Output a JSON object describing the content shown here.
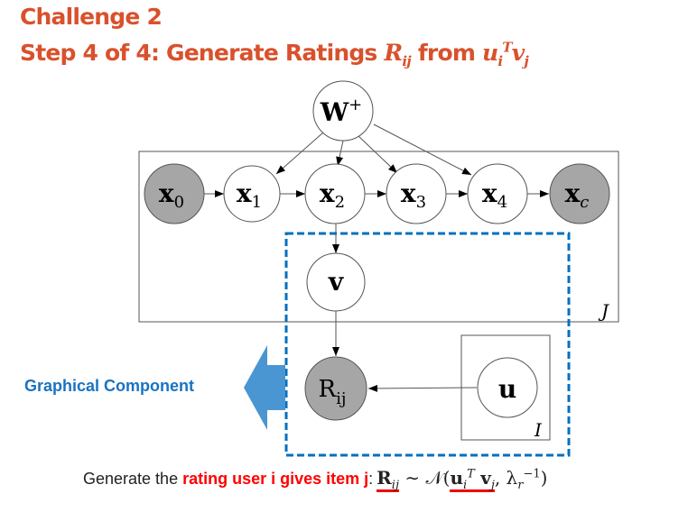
{
  "slide": {
    "title_line1": "Challenge 2",
    "title_line2_prefix": "Step 4 of 4: Generate Ratings ",
    "title_R": "R",
    "title_R_sub": "ij",
    "title_from": " from ",
    "title_u": "u",
    "title_u_sub": "i",
    "title_u_sup": "T",
    "title_v": "v",
    "title_v_sub": "j"
  },
  "diagram": {
    "nodes": {
      "W": {
        "label": "W",
        "sup": "+",
        "observed": false
      },
      "x0": {
        "label": "x",
        "sub": "0",
        "observed": true
      },
      "x1": {
        "label": "x",
        "sub": "1",
        "observed": false
      },
      "x2": {
        "label": "x",
        "sub": "2",
        "observed": false
      },
      "x3": {
        "label": "x",
        "sub": "3",
        "observed": false
      },
      "x4": {
        "label": "x",
        "sub": "4",
        "observed": false
      },
      "xc": {
        "label": "x",
        "sub": "c",
        "observed": true
      },
      "v": {
        "label": "v",
        "observed": false
      },
      "R": {
        "label": "R",
        "sub": "ij",
        "observed": true
      },
      "u": {
        "label": "u",
        "observed": false
      }
    },
    "plates": {
      "J": "J",
      "I": "I"
    },
    "colors": {
      "observed": "#a6a6a6",
      "highlight": "#0070c0",
      "arrow": "#4a96d2"
    }
  },
  "callout": {
    "label": "Graphical Component"
  },
  "bottom": {
    "prefix": "Generate the ",
    "highlight": "rating user i gives item j",
    "colon": ":",
    "R": "R",
    "R_sub": "ij",
    "tilde": " ∼ 𝒩(",
    "u": "u",
    "u_sub": "i",
    "u_sup": "T",
    "v": "v",
    "v_sub": "j",
    "lambda": ", λ",
    "lambda_sub": "r",
    "lambda_sup": "−1",
    "close": ")"
  }
}
